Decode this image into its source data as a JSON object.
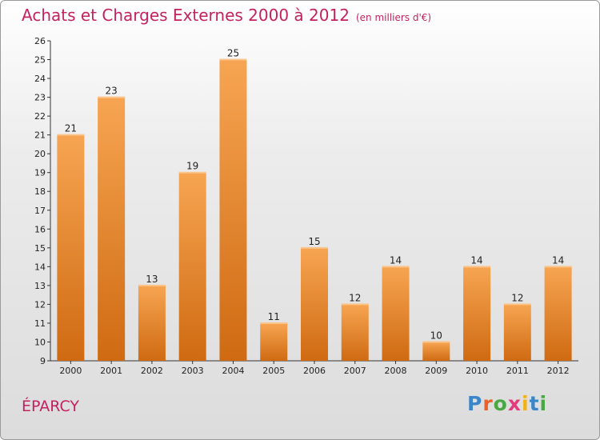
{
  "title": "Achats et Charges Externes 2000 à 2012",
  "unit": "(en milliers d'€)",
  "commune": "ÉPARCY",
  "logo": {
    "letters": [
      "P",
      "r",
      "o",
      "x",
      "i",
      "t",
      "i"
    ],
    "colors": [
      "#3a86c8",
      "#e8632b",
      "#4aa843",
      "#e23a7a",
      "#f2b215",
      "#3a86c8",
      "#4aa843"
    ]
  },
  "colors": {
    "title": "#c4225f",
    "bar_top": "#f7a552",
    "bar_bottom": "#cf6a12"
  },
  "chart_data": {
    "type": "bar",
    "title": "Achats et Charges Externes 2000 à 2012",
    "xlabel": "",
    "ylabel": "",
    "categories": [
      "2000",
      "2001",
      "2002",
      "2003",
      "2004",
      "2005",
      "2006",
      "2007",
      "2008",
      "2009",
      "2010",
      "2011",
      "2012"
    ],
    "values": [
      21,
      23,
      13,
      19,
      25,
      11,
      15,
      12,
      14,
      10,
      14,
      12,
      14
    ],
    "ylim": [
      9,
      26
    ],
    "yticks": [
      9,
      10,
      11,
      12,
      13,
      14,
      15,
      16,
      17,
      18,
      19,
      20,
      21,
      22,
      23,
      24,
      25,
      26
    ],
    "grid": false,
    "legend": "none"
  }
}
